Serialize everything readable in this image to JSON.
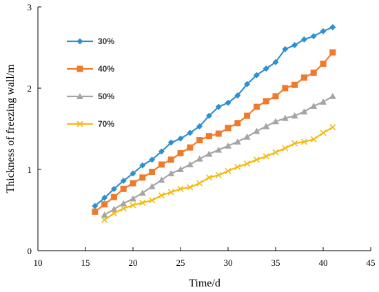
{
  "chart_data": {
    "type": "line",
    "title": "",
    "xlabel": "Time/d",
    "ylabel": "Thickness of freezing wall/m",
    "xlim": [
      10,
      45
    ],
    "ylim": [
      0,
      3
    ],
    "xticks": [
      "10",
      "15",
      "20",
      "25",
      "30",
      "35",
      "40",
      "45"
    ],
    "yticks": [
      "0",
      "1",
      "2",
      "3"
    ],
    "grid": false,
    "legend_position": "top-left",
    "series": [
      {
        "name": "30%",
        "color": "#2e8fd0",
        "marker": "diamond",
        "x": [
          16,
          17,
          18,
          19,
          20,
          21,
          22,
          23,
          24,
          25,
          26,
          27,
          28,
          29,
          30,
          31,
          32,
          33,
          34,
          35,
          36,
          37,
          38,
          39,
          40,
          41
        ],
        "y": [
          0.55,
          0.65,
          0.76,
          0.86,
          0.95,
          1.05,
          1.12,
          1.22,
          1.33,
          1.38,
          1.45,
          1.53,
          1.66,
          1.77,
          1.82,
          1.91,
          2.05,
          2.16,
          2.24,
          2.32,
          2.48,
          2.53,
          2.6,
          2.64,
          2.7,
          2.75
        ]
      },
      {
        "name": "40%",
        "color": "#f07a2a",
        "marker": "square",
        "x": [
          16,
          17,
          18,
          19,
          20,
          21,
          22,
          23,
          24,
          25,
          26,
          27,
          28,
          29,
          30,
          31,
          32,
          33,
          34,
          35,
          36,
          37,
          38,
          39,
          40,
          41
        ],
        "y": [
          0.48,
          0.57,
          0.66,
          0.76,
          0.83,
          0.9,
          0.97,
          1.06,
          1.12,
          1.2,
          1.27,
          1.36,
          1.41,
          1.44,
          1.51,
          1.57,
          1.66,
          1.77,
          1.84,
          1.9,
          2.0,
          2.04,
          2.13,
          2.19,
          2.3,
          2.44
        ]
      },
      {
        "name": "50%",
        "color": "#a5a5a5",
        "marker": "triangle",
        "x": [
          17,
          18,
          19,
          20,
          21,
          22,
          23,
          24,
          25,
          26,
          27,
          28,
          29,
          30,
          31,
          32,
          33,
          34,
          35,
          36,
          37,
          38,
          39,
          40,
          41
        ],
        "y": [
          0.44,
          0.51,
          0.58,
          0.64,
          0.71,
          0.79,
          0.87,
          0.95,
          1.0,
          1.06,
          1.13,
          1.19,
          1.24,
          1.29,
          1.34,
          1.4,
          1.47,
          1.53,
          1.59,
          1.63,
          1.66,
          1.71,
          1.78,
          1.83,
          1.9
        ]
      },
      {
        "name": "70%",
        "color": "#f5b90f",
        "marker": "x",
        "x": [
          17,
          18,
          19,
          20,
          21,
          22,
          23,
          24,
          25,
          26,
          27,
          28,
          29,
          30,
          31,
          32,
          33,
          34,
          35,
          36,
          37,
          38,
          39,
          40,
          41
        ],
        "y": [
          0.38,
          0.46,
          0.52,
          0.56,
          0.59,
          0.62,
          0.68,
          0.72,
          0.76,
          0.78,
          0.83,
          0.9,
          0.93,
          0.98,
          1.03,
          1.07,
          1.12,
          1.16,
          1.21,
          1.26,
          1.32,
          1.34,
          1.37,
          1.45,
          1.52
        ]
      }
    ]
  }
}
